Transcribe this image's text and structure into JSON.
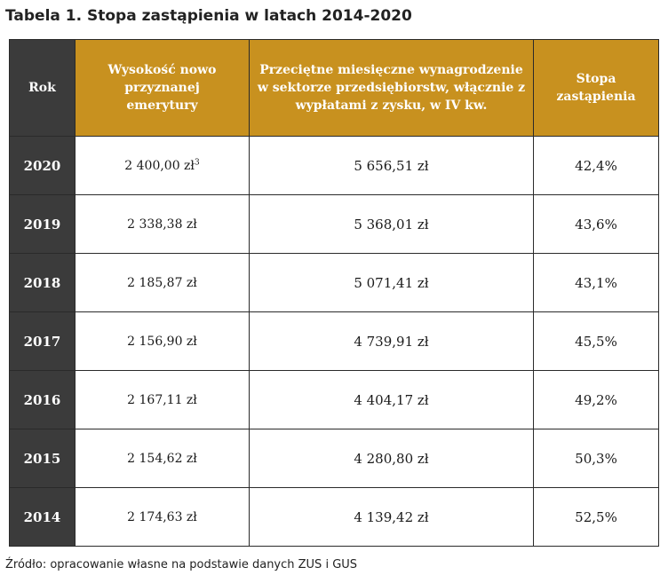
{
  "title": "Tabela 1. Stopa zastąpienia w latach 2014-2020",
  "colors": {
    "header_gold": "#c8911f",
    "year_dark": "#3b3b3b",
    "border": "#2a2a2a"
  },
  "table": {
    "headers": {
      "year": "Rok",
      "pension": "Wysokość nowo przyznanej emerytury",
      "wage": "Przeciętne miesięczne wynagrodzenie w sektorze przedsiębiorstw, włącznie z wypłatami z zysku, w IV kw.",
      "rate": "Stopa zastąpienia"
    },
    "rows": [
      {
        "year": "2020",
        "pension": "2 400,00 zł",
        "footnote": "3",
        "wage": "5 656,51 zł",
        "rate": "42,4%"
      },
      {
        "year": "2019",
        "pension": "2 338,38 zł",
        "footnote": "",
        "wage": "5 368,01 zł",
        "rate": "43,6%"
      },
      {
        "year": "2018",
        "pension": "2 185,87 zł",
        "footnote": "",
        "wage": "5 071,41 zł",
        "rate": "43,1%"
      },
      {
        "year": "2017",
        "pension": "2 156,90 zł",
        "footnote": "",
        "wage": "4 739,91 zł",
        "rate": "45,5%"
      },
      {
        "year": "2016",
        "pension": "2 167,11 zł",
        "footnote": "",
        "wage": "4 404,17 zł",
        "rate": "49,2%"
      },
      {
        "year": "2015",
        "pension": "2 154,62 zł",
        "footnote": "",
        "wage": "4 280,80 zł",
        "rate": "50,3%"
      },
      {
        "year": "2014",
        "pension": "2 174,63 zł",
        "footnote": "",
        "wage": "4 139,42 zł",
        "rate": "52,5%"
      }
    ]
  },
  "source": "Źródło: opracowanie własne na podstawie danych ZUS i GUS"
}
